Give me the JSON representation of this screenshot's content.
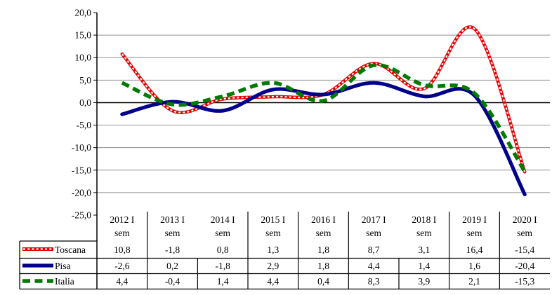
{
  "chart_data": {
    "type": "line",
    "title": "",
    "xlabel": "",
    "ylabel": "",
    "categories": [
      "2012 I sem",
      "2013 I sem",
      "2014 I sem",
      "2015 I sem",
      "2016 I sem",
      "2017 I sem",
      "2018 I sem",
      "2019 I sem",
      "2020 I sem"
    ],
    "category_second_line": "sem",
    "series": [
      {
        "name": "Toscana",
        "color": "#e60000",
        "style": "red-white-dotted",
        "values": [
          10.8,
          -1.8,
          0.8,
          1.3,
          1.8,
          8.7,
          3.1,
          16.4,
          -15.4
        ]
      },
      {
        "name": "Pisa",
        "color": "#00008b",
        "style": "solid",
        "values": [
          -2.6,
          0.2,
          -1.8,
          2.9,
          1.8,
          4.4,
          1.4,
          1.6,
          -20.4
        ]
      },
      {
        "name": "Italia",
        "color": "#007a00",
        "style": "dashed",
        "values": [
          4.4,
          -0.4,
          1.4,
          4.4,
          0.4,
          8.3,
          3.9,
          2.1,
          -15.3
        ]
      }
    ],
    "ylim": [
      -25,
      20
    ],
    "ytick_step": 5,
    "ytick_labels": [
      "20,0",
      "15,0",
      "10,0",
      "5,0",
      "0,0",
      "-5,0",
      "-10,0",
      "-15,0",
      "-20,0",
      "-25,0"
    ],
    "decimal_separator": ",",
    "grid": "horizontal",
    "smoothed_lines": true,
    "legend_position": "table-left",
    "data_table_shown": true
  },
  "colors": {
    "background": "#ffffff",
    "gridline": "#919191",
    "axis": "#000000",
    "table_border": "#000000",
    "text": "#000000",
    "toscana": "#e60000",
    "pisa": "#00008b",
    "italia": "#007a00"
  }
}
